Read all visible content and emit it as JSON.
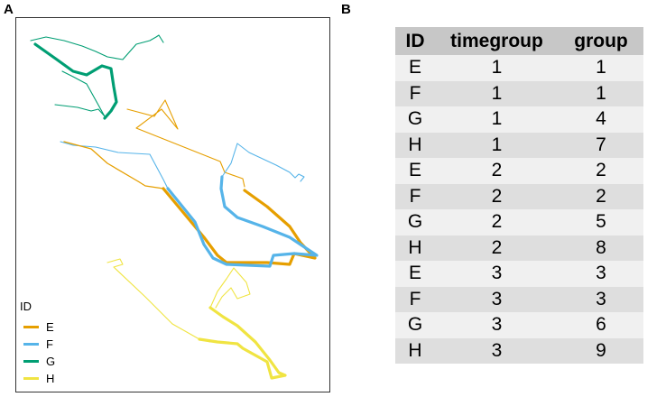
{
  "panels": {
    "a_label": "A",
    "b_label": "B"
  },
  "chart_data": {
    "type": "line",
    "title": "",
    "xlabel": "",
    "ylabel": "",
    "legend": {
      "title": "ID",
      "placement": "bottom-left"
    },
    "grid": false,
    "series": [
      {
        "name": "E",
        "color": "#E69F00",
        "segments": [
          {
            "w": 1.1,
            "points": [
              [
                140,
                120
              ],
              [
                170,
                128
              ],
              [
                182,
                110
              ],
              [
                196,
                142
              ],
              [
                178,
                120
              ],
              [
                150,
                141
              ],
              [
                243,
                178
              ],
              [
                248,
                190
              ],
              [
                268,
                197
              ],
              [
                270,
                206
              ]
            ]
          },
          {
            "w": 1.3,
            "points": [
              [
                70,
                156
              ],
              [
                100,
                164
              ],
              [
                118,
                180
              ],
              [
                152,
                200
              ],
              [
                160,
                205
              ],
              [
                180,
                208
              ]
            ]
          },
          {
            "w": 3.2,
            "points": [
              [
                270,
                210
              ],
              [
                295,
                228
              ],
              [
                320,
                250
              ],
              [
                332,
                268
              ],
              [
                348,
                285
              ],
              [
                325,
                280
              ],
              [
                320,
                292
              ],
              [
                295,
                290
              ],
              [
                250,
                290
              ],
              [
                240,
                282
              ],
              [
                225,
                262
              ],
              [
                180,
                208
              ]
            ]
          }
        ]
      },
      {
        "name": "F",
        "color": "#56B4E9",
        "segments": [
          {
            "w": 1.1,
            "points": [
              [
                66,
                156
              ],
              [
                80,
                160
              ],
              [
                105,
                162
              ],
              [
                130,
                168
              ],
              [
                165,
                170
              ],
              [
                180,
                198
              ],
              [
                185,
                208
              ]
            ]
          },
          {
            "w": 1.1,
            "points": [
              [
                245,
                195
              ],
              [
                255,
                180
              ],
              [
                262,
                158
              ],
              [
                275,
                168
              ],
              [
                290,
                175
              ],
              [
                305,
                182
              ],
              [
                320,
                190
              ],
              [
                326,
                196
              ],
              [
                330,
                192
              ],
              [
                336,
                195
              ],
              [
                332,
                200
              ]
            ]
          },
          {
            "w": 3.2,
            "points": [
              [
                185,
                208
              ],
              [
                215,
                245
              ],
              [
                225,
                270
              ],
              [
                235,
                285
              ],
              [
                250,
                292
              ],
              [
                298,
                294
              ],
              [
                302,
                282
              ],
              [
                325,
                280
              ],
              [
                350,
                282
              ],
              [
                320,
                262
              ],
              [
                290,
                250
              ],
              [
                262,
                240
              ],
              [
                248,
                228
              ],
              [
                244,
                208
              ],
              [
                245,
                195
              ]
            ]
          }
        ]
      },
      {
        "name": "G",
        "color": "#009E73",
        "segments": [
          {
            "w": 1.1,
            "points": [
              [
                33,
                44
              ],
              [
                50,
                40
              ],
              [
                70,
                44
              ],
              [
                90,
                50
              ],
              [
                105,
                56
              ],
              [
                118,
                62
              ],
              [
                135,
                65
              ],
              [
                150,
                48
              ],
              [
                165,
                44
              ],
              [
                172,
                40
              ],
              [
                175,
                38
              ],
              [
                180,
                46
              ]
            ]
          },
          {
            "w": 1.1,
            "points": [
              [
                60,
                115
              ],
              [
                85,
                118
              ],
              [
                100,
                122
              ],
              [
                108,
                120
              ],
              [
                115,
                128
              ],
              [
                95,
                92
              ],
              [
                80,
                84
              ],
              [
                68,
                78
              ]
            ]
          },
          {
            "w": 3.2,
            "points": [
              [
                38,
                48
              ],
              [
                62,
                65
              ],
              [
                80,
                78
              ],
              [
                95,
                82
              ],
              [
                112,
                72
              ],
              [
                122,
                75
              ],
              [
                125,
                95
              ],
              [
                128,
                112
              ],
              [
                122,
                122
              ],
              [
                115,
                130
              ]
            ]
          }
        ]
      },
      {
        "name": "H",
        "color": "#F0E442",
        "segments": [
          {
            "w": 1.1,
            "points": [
              [
                118,
                290
              ],
              [
                132,
                286
              ],
              [
                135,
                292
              ],
              [
                125,
                295
              ],
              [
                160,
                328
              ],
              [
                190,
                358
              ],
              [
                220,
                375
              ],
              [
                232,
                378
              ]
            ]
          },
          {
            "w": 1.1,
            "points": [
              [
                232,
                340
              ],
              [
                240,
                322
              ],
              [
                250,
                308
              ],
              [
                258,
                296
              ],
              [
                272,
                312
              ],
              [
                276,
                325
              ],
              [
                262,
                330
              ],
              [
                255,
                318
              ],
              [
                245,
                328
              ],
              [
                238,
                340
              ]
            ]
          },
          {
            "w": 3.2,
            "points": [
              [
                232,
                340
              ],
              [
                246,
                350
              ],
              [
                262,
                360
              ],
              [
                282,
                378
              ],
              [
                298,
                398
              ],
              [
                308,
                412
              ],
              [
                315,
                415
              ],
              [
                300,
                418
              ],
              [
                295,
                400
              ],
              [
                268,
                385
              ],
              [
                262,
                380
              ],
              [
                240,
                378
              ],
              [
                220,
                375
              ]
            ]
          }
        ]
      }
    ]
  },
  "legend": {
    "title": "ID",
    "items": [
      {
        "label": "E",
        "color": "#E69F00"
      },
      {
        "label": "F",
        "color": "#56B4E9"
      },
      {
        "label": "G",
        "color": "#009E73"
      },
      {
        "label": "H",
        "color": "#F0E442"
      }
    ]
  },
  "table": {
    "headers": [
      "ID",
      "timegroup",
      "group"
    ],
    "rows": [
      [
        "E",
        "1",
        "1"
      ],
      [
        "F",
        "1",
        "1"
      ],
      [
        "G",
        "1",
        "4"
      ],
      [
        "H",
        "1",
        "7"
      ],
      [
        "E",
        "2",
        "2"
      ],
      [
        "F",
        "2",
        "2"
      ],
      [
        "G",
        "2",
        "5"
      ],
      [
        "H",
        "2",
        "8"
      ],
      [
        "E",
        "3",
        "3"
      ],
      [
        "F",
        "3",
        "3"
      ],
      [
        "G",
        "3",
        "6"
      ],
      [
        "H",
        "3",
        "9"
      ]
    ]
  }
}
